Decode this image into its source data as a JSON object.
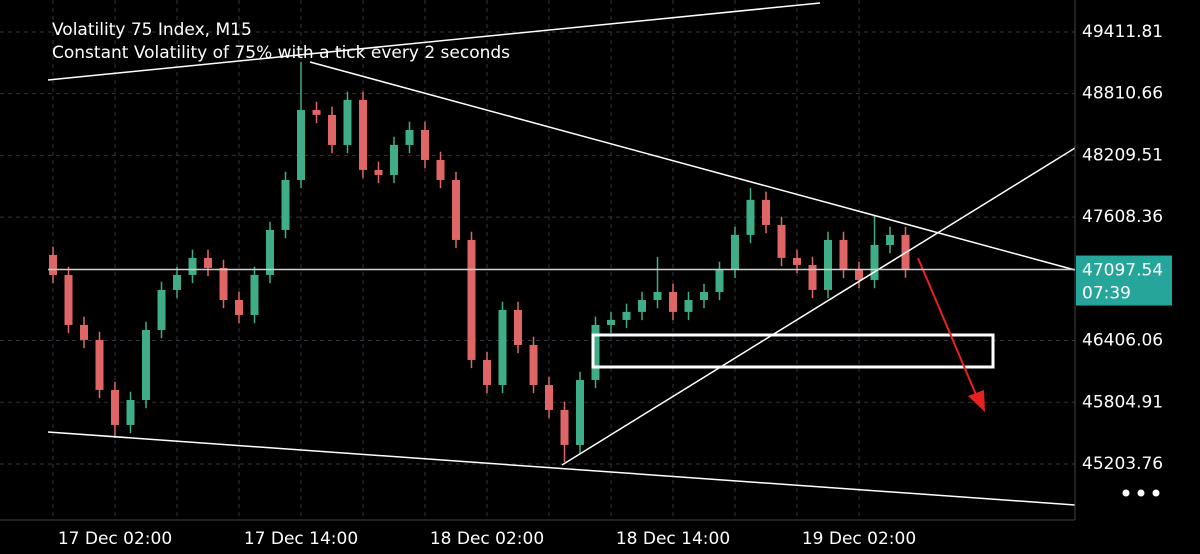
{
  "chart_data": {
    "type": "candlestick",
    "title": "Volatility 75 Index, M15",
    "subtitle": "Constant Volatility of 75% with a tick every 2 seconds",
    "categories": [
      null,
      null,
      null,
      null,
      "17 Dec 02:00",
      null,
      null,
      null,
      null,
      null,
      null,
      null,
      null,
      null,
      null,
      null,
      "17 Dec 14:00",
      null,
      null,
      null,
      null,
      null,
      null,
      null,
      null,
      null,
      null,
      null,
      "18 Dec 02:00",
      null,
      null,
      null,
      null,
      null,
      null,
      null,
      null,
      null,
      null,
      null,
      "18 Dec 14:00",
      null,
      null,
      null,
      null,
      null,
      null,
      null,
      null,
      null,
      null,
      null,
      "19 Dec 02:00",
      null,
      null,
      null
    ],
    "open": [
      47240,
      47045,
      46558,
      46412,
      45925,
      45584,
      45827,
      46509,
      46899,
      47045,
      47211,
      47113,
      46801,
      46655,
      47045,
      47483,
      47970,
      48652,
      48604,
      48311,
      48750,
      48068,
      48019,
      48311,
      48457,
      48165,
      47970,
      47386,
      46217,
      45973,
      46704,
      46363,
      45973,
      45730,
      45389,
      46022,
      46558,
      46607,
      46685,
      46801,
      46879,
      46685,
      46801,
      46879,
      47094,
      47435,
      47776,
      47532,
      47211,
      47142,
      46899,
      47386,
      47094,
      46996,
      47337,
      47435
    ],
    "high": [
      47320,
      47125,
      46638,
      46492,
      46005,
      45907,
      46589,
      46979,
      47125,
      47291,
      47291,
      47193,
      46881,
      47125,
      47563,
      48050,
      49120,
      48732,
      48684,
      48830,
      48830,
      48148,
      48391,
      48537,
      48537,
      48245,
      48050,
      47466,
      46297,
      46784,
      46784,
      46443,
      46053,
      45810,
      46102,
      46638,
      46687,
      46765,
      46881,
      47220,
      46959,
      46881,
      46959,
      47174,
      47515,
      47892,
      47856,
      47612,
      47291,
      47222,
      47466,
      47466,
      47174,
      47620,
      47515,
      47515
    ],
    "low": [
      46965,
      46478,
      46332,
      45845,
      45457,
      45504,
      45747,
      46429,
      46819,
      46965,
      47033,
      46721,
      46575,
      46575,
      46965,
      47403,
      47890,
      48524,
      48231,
      48231,
      47988,
      47939,
      47939,
      48231,
      48085,
      47890,
      47306,
      46137,
      45893,
      45893,
      46283,
      45893,
      45650,
      45223,
      45309,
      45942,
      46478,
      46527,
      46605,
      46721,
      46605,
      46605,
      46721,
      46799,
      47014,
      47355,
      47452,
      47131,
      47062,
      46819,
      46819,
      47014,
      46916,
      46916,
      47257,
      47017
    ],
    "close": [
      47045,
      46558,
      46412,
      45925,
      45584,
      45827,
      46509,
      46899,
      47045,
      47211,
      47113,
      46801,
      46655,
      47045,
      47483,
      47970,
      48652,
      48604,
      48311,
      48750,
      48068,
      48019,
      48311,
      48457,
      48165,
      47970,
      47386,
      46217,
      45973,
      46704,
      46363,
      45973,
      45730,
      45389,
      46022,
      46558,
      46607,
      46685,
      46801,
      46879,
      46685,
      46801,
      46879,
      47094,
      47435,
      47776,
      47532,
      47211,
      47142,
      46899,
      47386,
      47094,
      46996,
      47337,
      47435,
      47097.54
    ],
    "up_color": "#3fae86",
    "down_color": "#e06666",
    "ylim": [
      44658,
      49723
    ],
    "yticks": [
      45203.76,
      45804.91,
      46406.06,
      47608.36,
      48209.51,
      48810.66,
      49411.81
    ],
    "grid": true,
    "last_price": 47097.54,
    "last_price_color": "#26a69a",
    "countdown": "07:39"
  }
}
